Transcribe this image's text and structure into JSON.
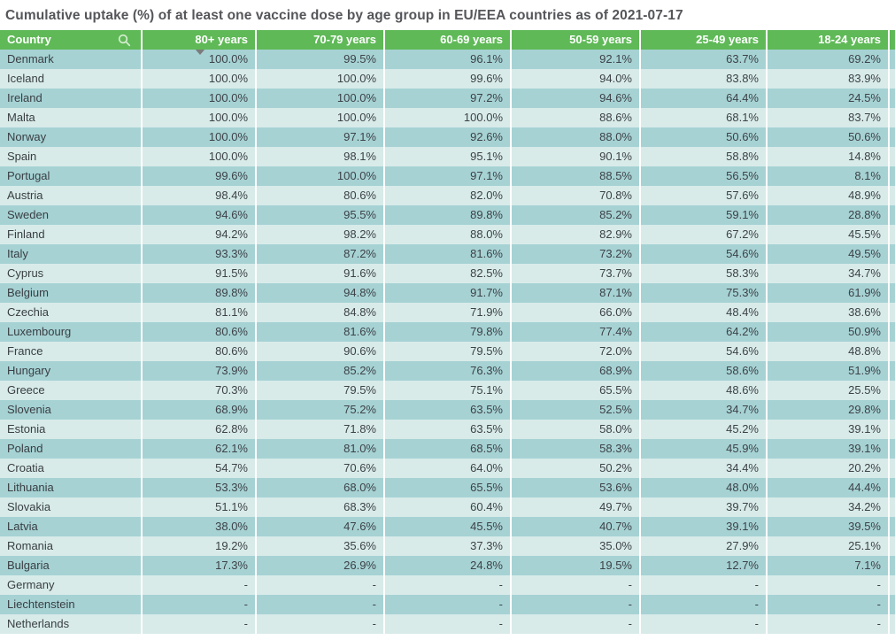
{
  "title": "Cumulative uptake (%) of at least one vaccine dose by age group in EU/EEA countries as of 2021-07-17",
  "table": {
    "columns": [
      "Country",
      "80+ years",
      "70-79 years",
      "60-69 years",
      "50-59 years",
      "25-49 years",
      "18-24 years"
    ],
    "sort": {
      "column": "80+ years",
      "direction": "descending",
      "column_index": 0
    },
    "empty_value": "-",
    "rows": [
      {
        "country": "Denmark",
        "values": [
          "100.0%",
          "99.5%",
          "96.1%",
          "92.1%",
          "63.7%",
          "69.2%"
        ]
      },
      {
        "country": "Iceland",
        "values": [
          "100.0%",
          "100.0%",
          "99.6%",
          "94.0%",
          "83.8%",
          "83.9%"
        ]
      },
      {
        "country": "Ireland",
        "values": [
          "100.0%",
          "100.0%",
          "97.2%",
          "94.6%",
          "64.4%",
          "24.5%"
        ]
      },
      {
        "country": "Malta",
        "values": [
          "100.0%",
          "100.0%",
          "100.0%",
          "88.6%",
          "68.1%",
          "83.7%"
        ]
      },
      {
        "country": "Norway",
        "values": [
          "100.0%",
          "97.1%",
          "92.6%",
          "88.0%",
          "50.6%",
          "50.6%"
        ]
      },
      {
        "country": "Spain",
        "values": [
          "100.0%",
          "98.1%",
          "95.1%",
          "90.1%",
          "58.8%",
          "14.8%"
        ]
      },
      {
        "country": "Portugal",
        "values": [
          "99.6%",
          "100.0%",
          "97.1%",
          "88.5%",
          "56.5%",
          "8.1%"
        ]
      },
      {
        "country": "Austria",
        "values": [
          "98.4%",
          "80.6%",
          "82.0%",
          "70.8%",
          "57.6%",
          "48.9%"
        ]
      },
      {
        "country": "Sweden",
        "values": [
          "94.6%",
          "95.5%",
          "89.8%",
          "85.2%",
          "59.1%",
          "28.8%"
        ]
      },
      {
        "country": "Finland",
        "values": [
          "94.2%",
          "98.2%",
          "88.0%",
          "82.9%",
          "67.2%",
          "45.5%"
        ]
      },
      {
        "country": "Italy",
        "values": [
          "93.3%",
          "87.2%",
          "81.6%",
          "73.2%",
          "54.6%",
          "49.5%"
        ]
      },
      {
        "country": "Cyprus",
        "values": [
          "91.5%",
          "91.6%",
          "82.5%",
          "73.7%",
          "58.3%",
          "34.7%"
        ]
      },
      {
        "country": "Belgium",
        "values": [
          "89.8%",
          "94.8%",
          "91.7%",
          "87.1%",
          "75.3%",
          "61.9%"
        ]
      },
      {
        "country": "Czechia",
        "values": [
          "81.1%",
          "84.8%",
          "71.9%",
          "66.0%",
          "48.4%",
          "38.6%"
        ]
      },
      {
        "country": "Luxembourg",
        "values": [
          "80.6%",
          "81.6%",
          "79.8%",
          "77.4%",
          "64.2%",
          "50.9%"
        ]
      },
      {
        "country": "France",
        "values": [
          "80.6%",
          "90.6%",
          "79.5%",
          "72.0%",
          "54.6%",
          "48.8%"
        ]
      },
      {
        "country": "Hungary",
        "values": [
          "73.9%",
          "85.2%",
          "76.3%",
          "68.9%",
          "58.6%",
          "51.9%"
        ]
      },
      {
        "country": "Greece",
        "values": [
          "70.3%",
          "79.5%",
          "75.1%",
          "65.5%",
          "48.6%",
          "25.5%"
        ]
      },
      {
        "country": "Slovenia",
        "values": [
          "68.9%",
          "75.2%",
          "63.5%",
          "52.5%",
          "34.7%",
          "29.8%"
        ]
      },
      {
        "country": "Estonia",
        "values": [
          "62.8%",
          "71.8%",
          "63.5%",
          "58.0%",
          "45.2%",
          "39.1%"
        ]
      },
      {
        "country": "Poland",
        "values": [
          "62.1%",
          "81.0%",
          "68.5%",
          "58.3%",
          "45.9%",
          "39.1%"
        ]
      },
      {
        "country": "Croatia",
        "values": [
          "54.7%",
          "70.6%",
          "64.0%",
          "50.2%",
          "34.4%",
          "20.2%"
        ]
      },
      {
        "country": "Lithuania",
        "values": [
          "53.3%",
          "68.0%",
          "65.5%",
          "53.6%",
          "48.0%",
          "44.4%"
        ]
      },
      {
        "country": "Slovakia",
        "values": [
          "51.1%",
          "68.3%",
          "60.4%",
          "49.7%",
          "39.7%",
          "34.2%"
        ]
      },
      {
        "country": "Latvia",
        "values": [
          "38.0%",
          "47.6%",
          "45.5%",
          "40.7%",
          "39.1%",
          "39.5%"
        ]
      },
      {
        "country": "Romania",
        "values": [
          "19.2%",
          "35.6%",
          "37.3%",
          "35.0%",
          "27.9%",
          "25.1%"
        ]
      },
      {
        "country": "Bulgaria",
        "values": [
          "17.3%",
          "26.9%",
          "24.8%",
          "19.5%",
          "12.7%",
          "7.1%"
        ]
      },
      {
        "country": "Germany",
        "values": [
          "-",
          "-",
          "-",
          "-",
          "-",
          "-"
        ]
      },
      {
        "country": "Liechtenstein",
        "values": [
          "-",
          "-",
          "-",
          "-",
          "-",
          "-"
        ]
      },
      {
        "country": "Netherlands",
        "values": [
          "-",
          "-",
          "-",
          "-",
          "-",
          "-"
        ]
      }
    ]
  },
  "icons": {
    "search": "search-icon",
    "sort_descending": "sort-desc-icon"
  },
  "colors": {
    "header_green": "#5fb957",
    "row_dark_teal": "#a6d2d4",
    "row_light_teal": "#d8ebe9",
    "title_text": "#55565a",
    "cell_text": "#3d4247",
    "column_separator": "#ffffff",
    "sort_arrow": "#7b7b7b"
  }
}
